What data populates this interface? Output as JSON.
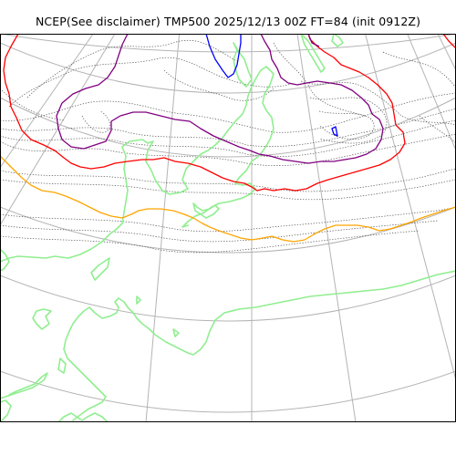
{
  "title": "NCEP(See disclaimer) TMP500 2025/12/13 00Z FT=84 (init 0912Z)",
  "colors": {
    "coastline": "#90ee90",
    "graticule": "#b4b4b4",
    "height_contour": "#555555",
    "contour_red": "#ff0000",
    "contour_purple": "#800080",
    "contour_blue": "#0000ff",
    "contour_orange": "#ffa500",
    "frame": "#000000"
  }
}
